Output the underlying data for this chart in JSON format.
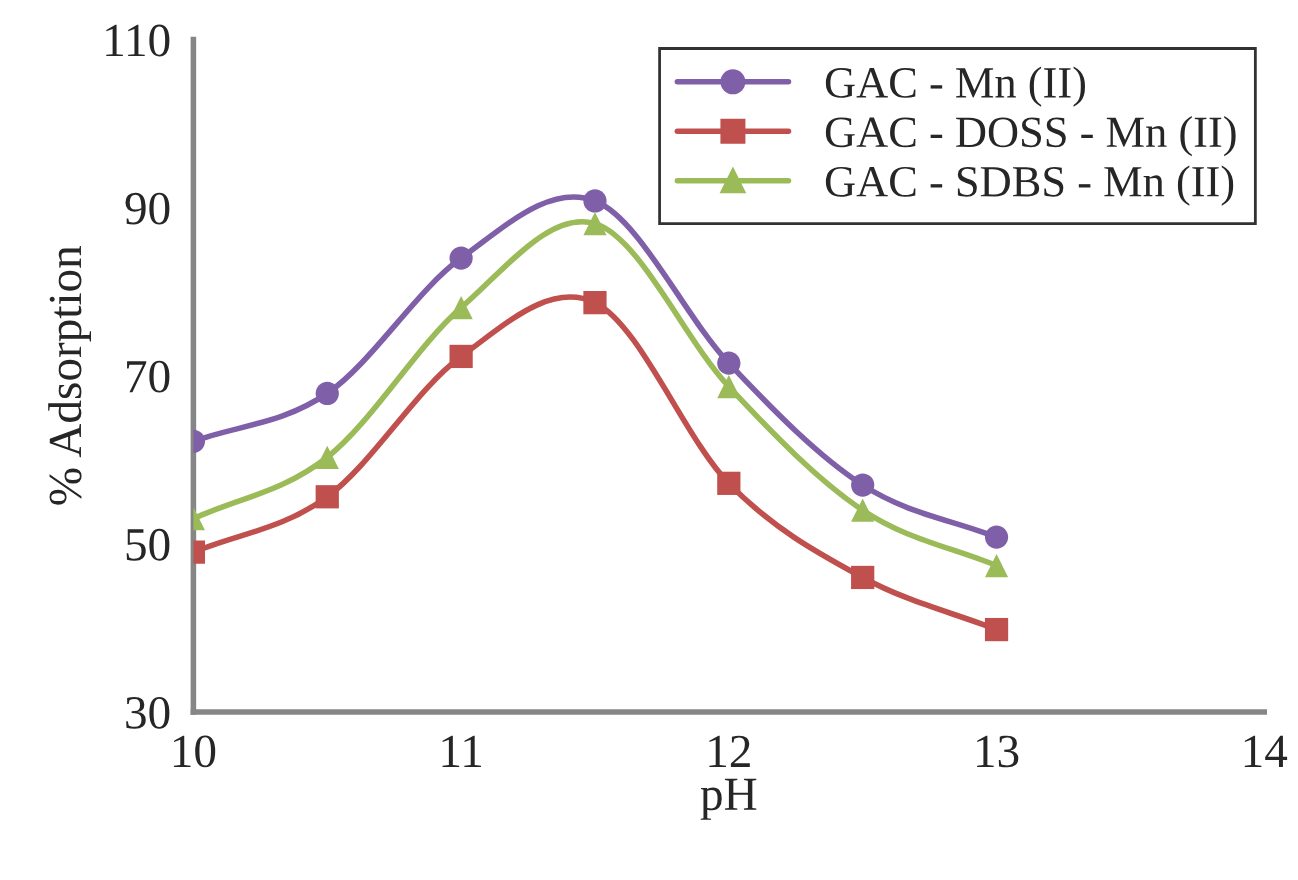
{
  "chart_data": {
    "type": "line",
    "xlabel": "pH",
    "ylabel": "% Adsorption",
    "x": [
      10,
      10.5,
      11,
      11.5,
      12,
      12.5,
      13
    ],
    "series": [
      {
        "name": "GAC - Mn (II)",
        "color": "#7f60a8",
        "marker": "circle",
        "values": [
          62.2,
          67.9,
          84.0,
          90.8,
          71.5,
          57.0,
          50.8
        ]
      },
      {
        "name": "GAC - DOSS - Mn (II)",
        "color": "#c0504d",
        "marker": "square",
        "values": [
          49.0,
          55.6,
          72.3,
          78.7,
          57.2,
          46.0,
          39.8
        ]
      },
      {
        "name": "GAC - SDBS - Mn (II)",
        "color": "#9bbb59",
        "marker": "triangle",
        "values": [
          53.0,
          60.3,
          78.1,
          88.1,
          68.7,
          54.0,
          47.4
        ]
      }
    ],
    "xlim": [
      10,
      14
    ],
    "xticks": [
      10,
      11,
      12,
      13,
      14
    ],
    "ylim": [
      30,
      110
    ],
    "yticks": [
      30,
      50,
      70,
      90,
      110
    ],
    "grid": false,
    "legend": "top right",
    "line_style": "solid"
  }
}
